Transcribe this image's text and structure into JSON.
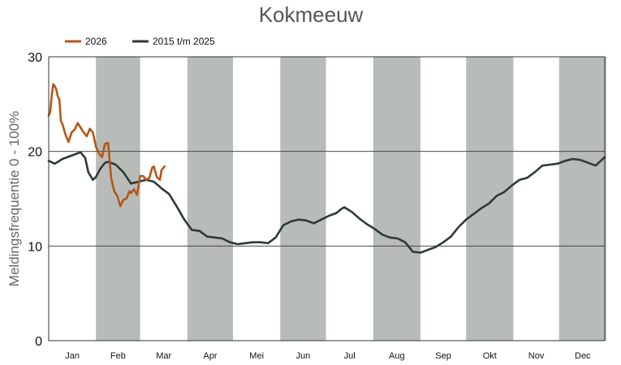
{
  "chart_data": {
    "type": "line",
    "title": "Kokmeeuw",
    "xlabel": "",
    "ylabel": "Meldingsfrequentie 0 - 100%",
    "ylim": [
      0,
      30
    ],
    "yticks": [
      0,
      10,
      20,
      30
    ],
    "grid": "horizontal",
    "legend_position": "top-left",
    "months": [
      "Jan",
      "Feb",
      "Mar",
      "Apr",
      "Mei",
      "Jun",
      "Jul",
      "Aug",
      "Sep",
      "Okt",
      "Nov",
      "Dec"
    ],
    "month_shading": "alternating gray bands (Feb, Apr, Jun, Aug, Okt, Dec)",
    "x_unit": "day of year",
    "x_range": [
      1,
      366
    ],
    "series": [
      {
        "name": "2026",
        "color": "#b5561a",
        "x": [
          1,
          2,
          3,
          4,
          5,
          6,
          7,
          8,
          9,
          10,
          12,
          14,
          16,
          18,
          20,
          22,
          24,
          26,
          28,
          30,
          32,
          34,
          36,
          38,
          40,
          42,
          44,
          46,
          48,
          50,
          52,
          54,
          55,
          57,
          59,
          61,
          63,
          65,
          67,
          69,
          70,
          72,
          74,
          75,
          77
        ],
        "values": [
          23.8,
          24.2,
          26.0,
          27.1,
          26.9,
          26.5,
          25.8,
          25.5,
          23.2,
          22.9,
          21.8,
          21.0,
          22.0,
          22.3,
          23.0,
          22.5,
          22.0,
          21.6,
          22.4,
          22.0,
          20.5,
          19.8,
          19.4,
          20.8,
          20.9,
          17.2,
          15.8,
          15.3,
          14.2,
          14.9,
          15.0,
          15.8,
          15.6,
          16.0,
          15.4,
          17.4,
          17.4,
          17.0,
          17.2,
          18.3,
          18.4,
          17.3,
          17.0,
          18.0,
          18.4
        ]
      },
      {
        "name": "2015 t/m 2025",
        "color": "#2e3a35",
        "x": [
          1,
          5,
          10,
          15,
          20,
          22,
          25,
          27,
          30,
          32,
          35,
          38,
          40,
          45,
          50,
          55,
          60,
          65,
          70,
          73,
          75,
          80,
          85,
          90,
          95,
          100,
          105,
          110,
          115,
          120,
          125,
          130,
          135,
          140,
          145,
          150,
          155,
          160,
          165,
          170,
          175,
          180,
          185,
          190,
          193,
          195,
          200,
          205,
          210,
          215,
          220,
          225,
          230,
          235,
          240,
          245,
          250,
          255,
          260,
          265,
          270,
          275,
          280,
          285,
          290,
          295,
          300,
          305,
          310,
          315,
          320,
          325,
          330,
          335,
          340,
          345,
          350,
          355,
          360,
          366
        ],
        "values": [
          19.0,
          18.7,
          19.2,
          19.5,
          19.8,
          19.9,
          19.3,
          17.8,
          17.0,
          17.3,
          18.2,
          18.8,
          18.9,
          18.6,
          17.8,
          16.6,
          16.8,
          17.0,
          16.8,
          16.4,
          16.1,
          15.5,
          14.2,
          12.8,
          11.7,
          11.6,
          11.0,
          10.9,
          10.8,
          10.4,
          10.2,
          10.3,
          10.4,
          10.4,
          10.3,
          10.9,
          12.2,
          12.6,
          12.8,
          12.7,
          12.4,
          12.8,
          13.2,
          13.5,
          13.9,
          14.1,
          13.6,
          12.9,
          12.3,
          11.8,
          11.2,
          10.9,
          10.8,
          10.4,
          9.4,
          9.3,
          9.6,
          9.9,
          10.4,
          11.0,
          12.0,
          12.8,
          13.4,
          14.0,
          14.5,
          15.3,
          15.7,
          16.4,
          17.0,
          17.2,
          17.8,
          18.5,
          18.6,
          18.7,
          19.0,
          19.2,
          19.1,
          18.8,
          18.5,
          19.4
        ]
      }
    ]
  }
}
